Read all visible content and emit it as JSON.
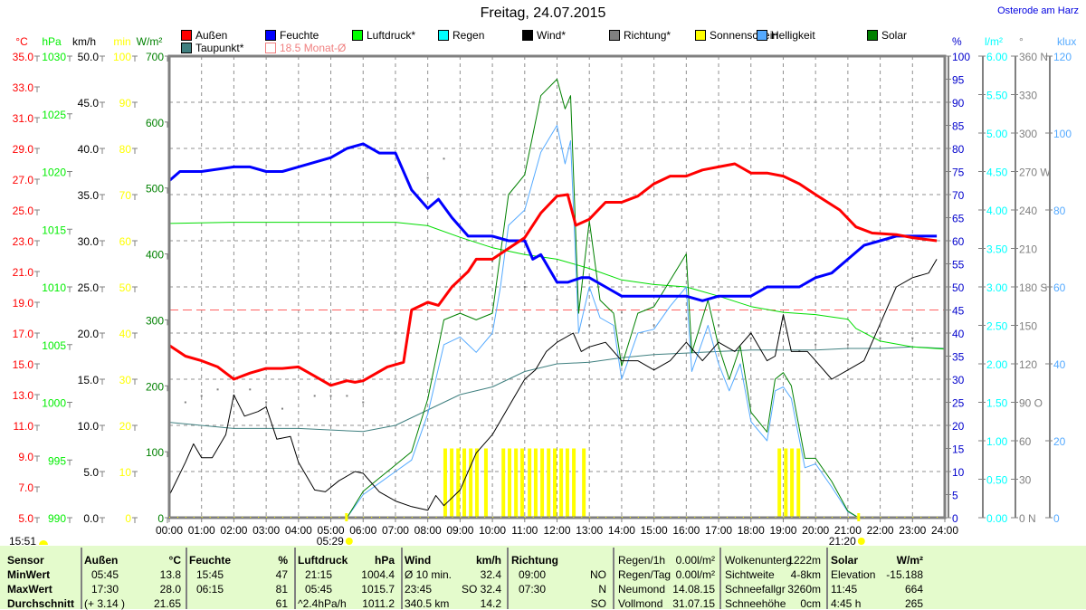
{
  "title": "Freitag, 24.07.2015",
  "location": "Osterode am Harz",
  "legend": [
    {
      "label": "Außen",
      "color": "#ff0000"
    },
    {
      "label": "Feuchte",
      "color": "#0000ff"
    },
    {
      "label": "Luftdruck*",
      "color": "#00ff00"
    },
    {
      "label": "Regen",
      "color": "#00ffff"
    },
    {
      "label": "Wind*",
      "color": "#000000"
    },
    {
      "label": "Richtung*",
      "color": "#808080"
    },
    {
      "label": "Sonnenschein",
      "color": "#ffff00"
    },
    {
      "label": "Helligkeit",
      "color": "#55aaff"
    },
    {
      "label": "Solar",
      "color": "#008000"
    },
    {
      "label": "Taupunkt*",
      "color": "#408080"
    },
    {
      "label": "18.5 Monat-Ø",
      "color": "#f08080"
    }
  ],
  "markers": {
    "sunrise": "05:29",
    "sunset": "21:20",
    "sunshine_total": "15:51"
  },
  "chart_data": {
    "type": "line",
    "title": "Freitag, 24.07.2015",
    "xlabel": "",
    "x_ticks": [
      "00:00",
      "01:00",
      "02:00",
      "03:00",
      "04:00",
      "05:00",
      "06:00",
      "07:00",
      "08:00",
      "09:00",
      "10:00",
      "11:00",
      "12:00",
      "13:00",
      "14:00",
      "15:00",
      "16:00",
      "17:00",
      "18:00",
      "19:00",
      "20:00",
      "21:00",
      "22:00",
      "23:00",
      "24:00"
    ],
    "xlim_hours": [
      0,
      24
    ],
    "grid": true,
    "legend_position": "top",
    "axes": {
      "temp": {
        "unit": "°C",
        "color": "#ff0000",
        "min": 5,
        "max": 35,
        "step": 2,
        "decimals": 1
      },
      "pressure": {
        "unit": "hPa",
        "color": "#00ee00",
        "min": 990,
        "max": 1030,
        "step": 5,
        "decimals": 0
      },
      "wind": {
        "unit": "km/h",
        "color": "#000000",
        "min": 0,
        "max": 50,
        "step": 5,
        "decimals": 1
      },
      "sunshine": {
        "unit": "min",
        "color": "#ffff00",
        "min": 0,
        "max": 100,
        "step": 10,
        "decimals": 0
      },
      "solar": {
        "unit": "W/m²",
        "color": "#008000",
        "min": 0,
        "max": 700,
        "step": 100,
        "decimals": 0
      },
      "humidity": {
        "unit": "%",
        "color": "#0000cc",
        "min": 0,
        "max": 100,
        "step": 5,
        "decimals": 0
      },
      "rain": {
        "unit": "l/m²",
        "color": "#00ffff",
        "min": 0,
        "max": 6,
        "step": 0.5,
        "decimals": 2
      },
      "direction": {
        "unit": "°",
        "color": "#808080",
        "min": 0,
        "max": 360,
        "step": 30,
        "decimals": 0,
        "labels": {
          "360": "360 N",
          "270": "270 W",
          "180": "180 S",
          "90": "90  O",
          "0": "0    N"
        }
      },
      "brightness": {
        "unit": "klux",
        "color": "#55aaff",
        "min": 0,
        "max": 120,
        "step": 20,
        "decimals": 0
      }
    },
    "monthly_avg_temp": 18.5,
    "series": [
      {
        "name": "Außen",
        "axis": "temp",
        "color": "#ff0000",
        "width": 3,
        "x": [
          0,
          0.5,
          1,
          1.5,
          2,
          2.5,
          3,
          3.5,
          4,
          4.5,
          5,
          5.5,
          5.75,
          6,
          6.75,
          7.25,
          7.5,
          8,
          8.33,
          8.75,
          9.25,
          9.5,
          10,
          10.5,
          11,
          11.5,
          12,
          12.33,
          12.58,
          13,
          13.5,
          14,
          14.5,
          15,
          15.5,
          16,
          16.5,
          17,
          17.5,
          18,
          18.5,
          19,
          19.5,
          20,
          20.75,
          21.25,
          21.75,
          22.5,
          23,
          23.75
        ],
        "y": [
          16.2,
          15.5,
          15.2,
          14.8,
          14.0,
          14.4,
          14.7,
          14.7,
          14.8,
          14.2,
          13.6,
          13.9,
          13.8,
          13.9,
          14.8,
          15.1,
          18.5,
          19.0,
          18.8,
          20.0,
          21.0,
          21.8,
          21.8,
          22.5,
          23.2,
          24.8,
          25.9,
          26.0,
          24.0,
          24.4,
          25.5,
          25.5,
          25.9,
          26.7,
          27.2,
          27.2,
          27.6,
          27.8,
          28.0,
          27.4,
          27.4,
          27.2,
          26.7,
          26.0,
          25.0,
          23.9,
          23.5,
          23.4,
          23.2,
          23.0
        ]
      },
      {
        "name": "Feuchte",
        "axis": "humidity",
        "color": "#0000ff",
        "width": 3,
        "x": [
          0,
          0.33,
          1,
          2,
          2.5,
          3,
          3.5,
          4,
          5,
          5.5,
          6,
          6.5,
          7,
          7.5,
          8,
          8.33,
          8.75,
          9.25,
          10,
          10.5,
          11,
          11.25,
          11.5,
          12,
          12.33,
          12.75,
          13,
          13.5,
          14,
          15,
          16,
          16.5,
          17,
          18,
          18.5,
          19.5,
          20,
          20.5,
          21,
          21.5,
          22,
          22.5,
          23,
          23.75
        ],
        "y": [
          73,
          75,
          75,
          76,
          76,
          75,
          75,
          76,
          78,
          80,
          81,
          79,
          79,
          71,
          67,
          69,
          65,
          61,
          61,
          60,
          60,
          56,
          57,
          51,
          51,
          52,
          52,
          50,
          48,
          48,
          48,
          47,
          48,
          48,
          50,
          50,
          52,
          53,
          56,
          59,
          60,
          61,
          61,
          61
        ]
      },
      {
        "name": "Luftdruck*",
        "axis": "pressure",
        "color": "#00dd00",
        "width": 1,
        "x": [
          0,
          2,
          4,
          6,
          7,
          8,
          9,
          10,
          11,
          12,
          13,
          14,
          15,
          16,
          17,
          18,
          19,
          20,
          21,
          21.25,
          22,
          23,
          24
        ],
        "y": [
          1015.5,
          1015.6,
          1015.6,
          1015.6,
          1015.6,
          1015.3,
          1014.3,
          1013.4,
          1012.8,
          1012.4,
          1011.6,
          1010.6,
          1010.2,
          1010.0,
          1009.2,
          1008.3,
          1007.8,
          1007.6,
          1007.2,
          1006.4,
          1005.3,
          1004.8,
          1004.6
        ]
      },
      {
        "name": "Taupunkt*",
        "axis": "temp",
        "color": "#408080",
        "width": 1,
        "x": [
          0,
          2,
          4,
          6,
          7,
          8,
          9,
          10,
          11,
          12,
          13,
          14,
          15,
          16,
          17,
          18,
          19,
          20,
          21,
          22,
          23,
          24
        ],
        "y": [
          11.2,
          10.8,
          10.8,
          10.6,
          11.0,
          12.0,
          13.0,
          13.5,
          14.5,
          15.0,
          15.1,
          15.4,
          15.6,
          15.7,
          15.8,
          15.9,
          15.9,
          15.9,
          16.0,
          16.0,
          16.1,
          16.0
        ]
      },
      {
        "name": "Wind*",
        "axis": "wind",
        "color": "#000000",
        "width": 1,
        "x": [
          0,
          0.5,
          0.75,
          1,
          1.33,
          1.75,
          2,
          2.33,
          2.75,
          3,
          3.33,
          3.75,
          4,
          4.5,
          4.83,
          5.25,
          5.75,
          6,
          6.5,
          7,
          7.5,
          8,
          8.25,
          8.5,
          9,
          9.5,
          10,
          10.5,
          11,
          11.33,
          11.67,
          12,
          12.5,
          12.75,
          13,
          13.5,
          14,
          14.5,
          15,
          15.5,
          16,
          16.5,
          17,
          17.5,
          18,
          18.5,
          18.75,
          19,
          19.25,
          19.75,
          20,
          20.5,
          21,
          21.5,
          22,
          22.5,
          23,
          23.5,
          23.75
        ],
        "y": [
          2.4,
          6,
          8,
          6.5,
          6.5,
          9,
          13.3,
          11,
          11.5,
          12,
          8.5,
          8.8,
          6,
          3.0,
          2.8,
          4,
          5,
          4.8,
          2.8,
          1.8,
          1.2,
          0.8,
          2.4,
          1.3,
          3,
          7,
          9,
          12,
          15,
          16,
          18,
          19,
          20,
          18,
          18.5,
          19,
          17,
          17,
          16,
          17,
          19,
          17,
          19,
          18,
          20,
          17,
          17.5,
          22,
          18,
          18,
          17,
          15,
          16,
          17,
          21,
          25,
          26,
          26.5,
          28
        ]
      },
      {
        "name": "Solar",
        "axis": "solar",
        "color": "#008000",
        "width": 1,
        "x": [
          5.5,
          6,
          6.5,
          7,
          7.5,
          8,
          8.5,
          9,
          9.5,
          10,
          10.25,
          10.5,
          11,
          11.5,
          12,
          12.25,
          12.42,
          12.67,
          13,
          13.33,
          13.75,
          14,
          14.5,
          15,
          15.5,
          16,
          16.17,
          16.67,
          17,
          17.33,
          17.67,
          18,
          18.5,
          18.75,
          19,
          19.25,
          19.67,
          20,
          20.5,
          21,
          21.33
        ],
        "y": [
          0,
          40,
          60,
          80,
          100,
          180,
          300,
          310,
          300,
          310,
          400,
          490,
          520,
          640,
          665,
          620,
          640,
          310,
          450,
          330,
          310,
          230,
          310,
          320,
          360,
          400,
          250,
          330,
          260,
          210,
          260,
          160,
          130,
          210,
          220,
          200,
          90,
          90,
          55,
          10,
          0
        ]
      },
      {
        "name": "Helligkeit",
        "axis": "brightness",
        "color": "#55aaff",
        "width": 1,
        "x": [
          5.5,
          6,
          6.5,
          7,
          7.5,
          8,
          8.5,
          9,
          9.5,
          10,
          10.25,
          10.5,
          11,
          11.5,
          12,
          12.25,
          12.42,
          12.67,
          13,
          13.33,
          13.75,
          14,
          14.5,
          15,
          15.5,
          16,
          16.17,
          16.67,
          17,
          17.33,
          17.67,
          18,
          18.5,
          18.75,
          19,
          19.25,
          19.67,
          20,
          20.5,
          21,
          21.33
        ],
        "y": [
          0,
          6,
          9,
          12,
          15,
          27,
          45,
          47,
          43,
          48,
          60,
          76,
          80,
          95,
          102,
          92,
          98,
          48,
          60,
          52,
          50,
          36,
          48,
          49,
          55,
          60,
          38,
          50,
          40,
          33,
          40,
          25,
          20,
          33,
          34,
          31,
          13,
          14,
          8,
          1.5,
          0
        ]
      }
    ],
    "sunshine_bars": {
      "axis": "sunshine",
      "color": "#ffff00",
      "x": [
        8.54,
        8.74,
        8.94,
        9.13,
        9.33,
        9.52,
        9.8,
        10.34,
        10.53,
        10.73,
        10.92,
        11.15,
        11.34,
        11.54,
        11.74,
        11.93,
        12.13,
        12.32,
        12.52,
        12.83,
        18.88,
        19.08,
        19.27,
        19.47
      ],
      "values": [
        15,
        15,
        15,
        15,
        15,
        15,
        15,
        15,
        15,
        15,
        15,
        15,
        15,
        15,
        15,
        15,
        15,
        15,
        15,
        15,
        15,
        15,
        15,
        15
      ]
    },
    "direction_dots": {
      "axis": "direction",
      "color": "#808080",
      "x": [
        0.5,
        1,
        1.5,
        2,
        2.5,
        3,
        3.5,
        4.5,
        5,
        5.5,
        6,
        8,
        8.5,
        10,
        11,
        12,
        13,
        14,
        15,
        16,
        17,
        18,
        19.5,
        20,
        21,
        22,
        23
      ],
      "values": [
        90,
        95,
        100,
        95,
        100,
        90,
        85,
        95,
        95,
        95,
        90,
        265,
        280,
        200,
        180,
        170,
        150,
        160,
        150,
        155,
        150,
        140,
        130,
        135,
        135,
        140,
        140
      ]
    }
  },
  "table": {
    "sensor": {
      "header": "Sensor",
      "rows": [
        "MinWert",
        "MaxWert",
        "Durchschnitt"
      ]
    },
    "sections": [
      {
        "header": [
          "Außen",
          "°C"
        ],
        "rows": [
          [
            "05:45",
            "13.8"
          ],
          [
            "17:30",
            "28.0"
          ],
          [
            "(+ 3.14 )",
            "21.65"
          ]
        ]
      },
      {
        "header": [
          "Feuchte",
          "%"
        ],
        "rows": [
          [
            "15:45",
            "47"
          ],
          [
            "06:15",
            "81"
          ],
          [
            "",
            "61"
          ]
        ]
      },
      {
        "header": [
          "Luftdruck",
          "hPa"
        ],
        "rows": [
          [
            "21:15",
            "1004.4"
          ],
          [
            "05:45",
            "1015.7"
          ],
          [
            "^2.4hPa/h",
            "1011.2"
          ]
        ]
      },
      {
        "header": [
          "Wind",
          "km/h"
        ],
        "rows": [
          [
            "Ø 10 min.",
            "32.4"
          ],
          [
            "23:45",
            "SO 32.4"
          ],
          [
            "340.5 km",
            "14.2"
          ]
        ]
      },
      {
        "header": [
          "Richtung",
          ""
        ],
        "rows": [
          [
            "09:00",
            "NO"
          ],
          [
            "07:30",
            "N"
          ],
          [
            "",
            "SO"
          ]
        ]
      },
      {
        "header": null,
        "rows": [
          [
            "Regen/1h",
            "0.00l/m²"
          ],
          [
            "Regen/Tag",
            "0.00l/m²"
          ],
          [
            "Neumond",
            "14.08.15"
          ],
          [
            "Vollmond",
            "31.07.15"
          ]
        ]
      },
      {
        "header": null,
        "rows": [
          [
            "Wolkenunterg",
            "1222m"
          ],
          [
            "Sichtweite",
            "4-8km"
          ],
          [
            "Schneefallgr",
            "3260m"
          ],
          [
            "Schneehöhe",
            "0cm"
          ]
        ]
      },
      {
        "header": [
          "Solar",
          "W/m²"
        ],
        "rows": [
          [
            "Elevation",
            "-15.188"
          ],
          [
            "11:45",
            "664"
          ],
          [
            "4:45 h",
            "265"
          ]
        ]
      }
    ]
  }
}
